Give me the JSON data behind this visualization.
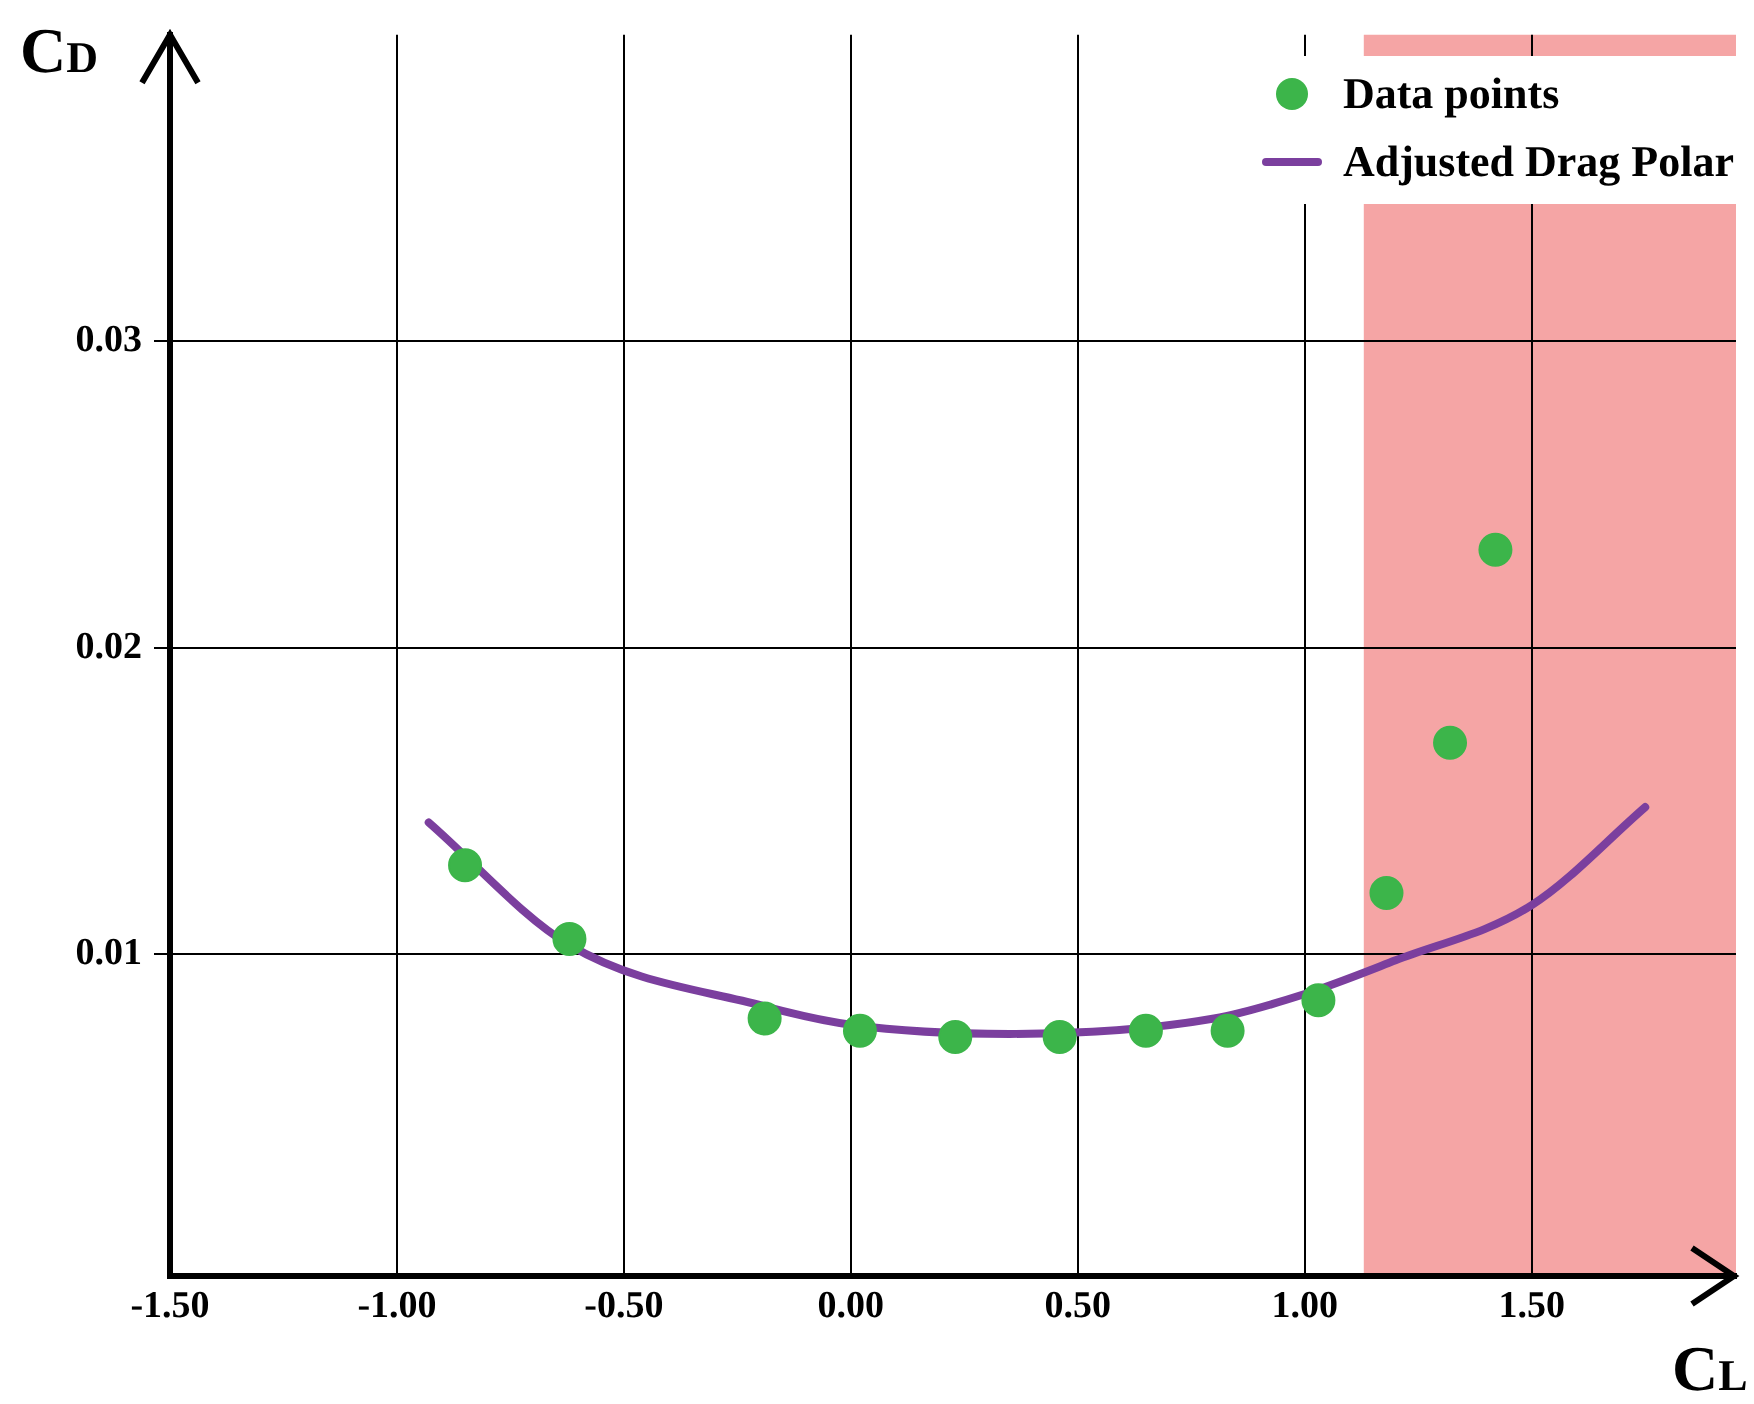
{
  "chart_data": {
    "type": "scatter",
    "xlabel": "C$_{L}$",
    "ylabel": "C$_{D}$",
    "xlim": [
      -1.5,
      1.95
    ],
    "ylim": [
      -0.0005,
      0.04
    ],
    "xticks": [
      {
        "value": -1.5,
        "label": "-1.50"
      },
      {
        "value": -1,
        "label": "-1.00"
      },
      {
        "value": -0.5,
        "label": "-0.50"
      },
      {
        "value": 0,
        "label": "0.00"
      },
      {
        "value": 0.5,
        "label": "0.50"
      },
      {
        "value": 1,
        "label": "1.00"
      },
      {
        "value": 1.5,
        "label": "1.50"
      }
    ],
    "yticks": [
      0.01,
      0.02,
      0.03
    ],
    "grid": true,
    "legend": "top right",
    "bands": [
      {
        "axis": "x",
        "from": 1.13,
        "to": 1.95,
        "color": "#f5a5a5"
      }
    ],
    "series": [
      {
        "name": "Data points",
        "marker": "circle",
        "color": "#3cb54a",
        "x": [
          -0.85,
          -0.62,
          -0.19,
          0.02,
          0.23,
          0.46,
          0.65,
          0.83,
          1.03,
          1.18,
          1.32,
          1.42
        ],
        "values": [
          0.0129,
          0.0105,
          0.0079,
          0.0075,
          0.0073,
          0.0073,
          0.0075,
          0.0075,
          0.0085,
          0.012,
          0.0169,
          0.0232
        ]
      },
      {
        "name": "Adjusted Drag Polar",
        "type": "line",
        "marker": "none",
        "color": "#7b3f9e",
        "x": [
          -0.93,
          -0.62,
          -0.19,
          0,
          0.35,
          0.8,
          1,
          1.2,
          1.5,
          1.75
        ],
        "values": [
          0.0143,
          0.0103,
          0.0083,
          0.0077,
          0.0074,
          0.0079,
          0.0087,
          0.0098,
          0.0116,
          0.0148
        ]
      }
    ]
  }
}
